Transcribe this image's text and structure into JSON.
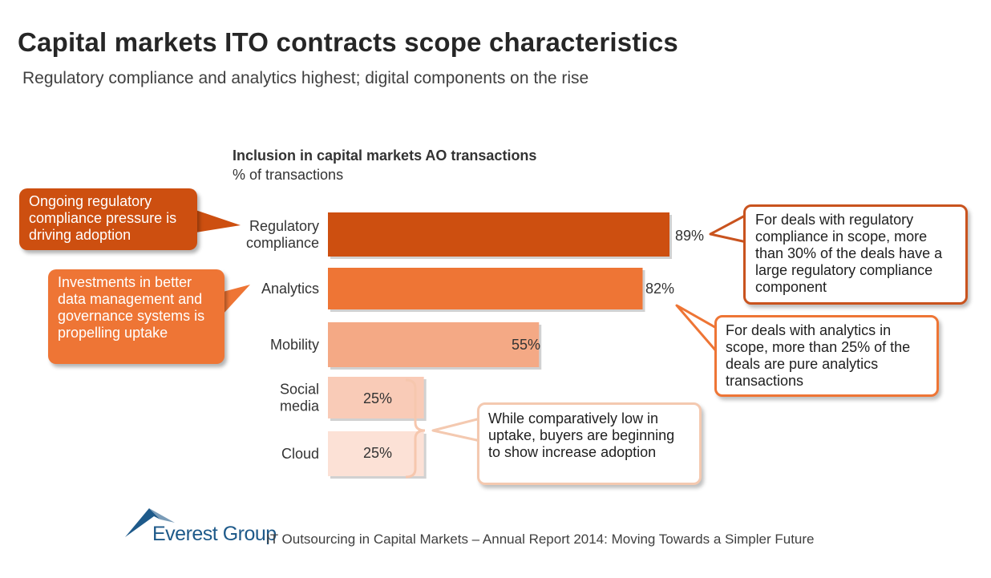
{
  "title": "Capital markets ITO contracts scope characteristics",
  "subtitle": "Regulatory compliance and analytics highest; digital components on the rise",
  "chart_data": {
    "type": "bar",
    "orientation": "horizontal",
    "title": "Inclusion in capital markets AO transactions",
    "unit": "% of transactions",
    "categories": [
      "Regulatory compliance",
      "Analytics",
      "Mobility",
      "Social media",
      "Cloud"
    ],
    "values": [
      89,
      82,
      55,
      25,
      25
    ],
    "value_labels": [
      "89%",
      "82%",
      "55%",
      "25%",
      "25%"
    ],
    "colors": [
      "#cd4f10",
      "#ee7535",
      "#f4a985",
      "#f9cbb7",
      "#fce1d6"
    ],
    "grid": false,
    "legend": false
  },
  "callouts": {
    "regulatory_left": "Ongoing regulatory compliance pressure is driving adoption",
    "analytics_left": "Investments in better data management and governance systems is propelling uptake",
    "regulatory_right": "For deals with regulatory compliance in scope, more than 30% of the deals have a large regulatory compliance component",
    "analytics_right": "For deals with analytics in scope, more than 25% of the deals are pure analytics transactions",
    "digital_right": "While comparatively low in uptake, buyers are beginning to show increase adoption"
  },
  "callout_colors": {
    "dark_orange": "#cd4f10",
    "orange": "#ee7535",
    "light_orange": "#f4c9b0"
  },
  "logo": {
    "text": "Everest Group",
    "icon": "mountain-icon"
  },
  "source": "IT Outsourcing in Capital Markets – Annual Report 2014: Moving Towards a Simpler Future"
}
